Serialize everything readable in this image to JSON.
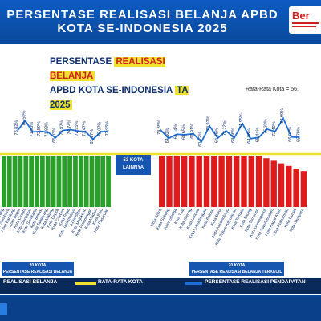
{
  "banner": {
    "title": "PERSENTASE REALISASI BELANJA APBD KOTA SE-INDONESIA 2025",
    "brand": "Ber"
  },
  "chart_title": {
    "line1_a": "PERSENTASE ",
    "line1_b": "REALISASI BELANJA",
    "line2_a": "APBD KOTA SE-INDONESIA ",
    "line2_b": "TA 2025"
  },
  "avg_label": "Rata-Rata Kota = 56,",
  "mid_box": "53 KOTA\nLAINNYA",
  "group_left": "20 KOTA\nPERSENTASE REALISASI BELANJA TERBESAR",
  "group_right": "20 KOTA\nPERSENTASE REALISASI BELANJA TERKECIL",
  "legend": {
    "bar": "REALISASI BELANJA",
    "avg": "RATA-RATA KOTA",
    "pend": "PERSENTASE REALISASI PENDAPATAN"
  },
  "colors": {
    "green": "#2aa02a",
    "red": "#e01b1b",
    "avg_line": "#f2e230",
    "pend_line": "#1e6fd8",
    "navy": "#10306f"
  },
  "chart_data": {
    "type": "bar",
    "groups": [
      {
        "name": "20 KOTA PERSENTASE REALISASI BELANJA TERBESAR",
        "categories": [
          "Kota Semarang",
          "Kota Surabaya",
          "Kota Bandung",
          "Kota Bogor",
          "Kota Cimahi",
          "Kota Denpasar",
          "Kota Surakarta",
          "Kota Bekasi",
          "Kota Tangerang",
          "Kota Malang",
          "Kota Depok",
          "Kota Cirebon",
          "Kota Tegal",
          "Kota Tasikmalaya",
          "Kota Blitar",
          "Kota Mojokerto",
          "Kota Probolinggo",
          "Kota Madiun",
          "Kota Batu",
          "Kota Pasuruan"
        ],
        "bar_values": [
          null,
          null,
          null,
          null,
          null,
          null,
          null,
          null,
          null,
          null,
          null,
          null,
          null,
          null,
          null,
          null,
          null,
          null,
          null,
          null
        ],
        "pendapatan_visible_labels": [
          "73,82%",
          "85,50%",
          "71,93%",
          "72,59%",
          "71,83%",
          "65,03%",
          "73,82%",
          "74,74%",
          "72,95%",
          "72,47%",
          "63,17%",
          "72,07%",
          "72,95%"
        ]
      },
      {
        "name": "20 KOTA PERSENTASE REALISASI BELANJA TERKECIL",
        "categories": [
          "Kota Solok",
          "Kota Sabang",
          "Kota Sibolga",
          "Kota Tual",
          "Kota Sorong",
          "Kota Langsa",
          "Kota Lubuklinggau",
          "Kota Palopo",
          "Kota Bima",
          "Kota Kotamobagu",
          "Kota Tidore Kepulauan",
          "Kota Ternate",
          "Kota Bitung",
          "Kota Tomohon",
          "Kota Gunungsitoli",
          "Kota Subulussalam",
          "Kota Pagar Alam",
          "Kota Prabumulih",
          "Kota Dumai",
          "Kota Jayapura"
        ],
        "bar_values": [
          null,
          null,
          null,
          null,
          null,
          null,
          null,
          null,
          null,
          null,
          null,
          null,
          null,
          null,
          null,
          null,
          null,
          null,
          null,
          null
        ],
        "pendapatan_visible_labels": [
          "74,35%",
          "64,50%",
          "69,14%",
          "68,65%",
          "69,91%",
          "60,22%",
          "78,92%",
          "64,69%",
          "73,22%",
          "64,86%",
          "81,95%",
          "64,08%",
          "65,44%",
          "75,33%",
          "72,40%",
          "87,99%",
          "66,02%",
          "65,79%"
        ]
      }
    ],
    "average_label": "Rata-Rata Kota = 56,",
    "legend": [
      "REALISASI BELANJA",
      "RATA-RATA KOTA",
      "PERSENTASE REALISASI PENDAPATAN"
    ]
  }
}
